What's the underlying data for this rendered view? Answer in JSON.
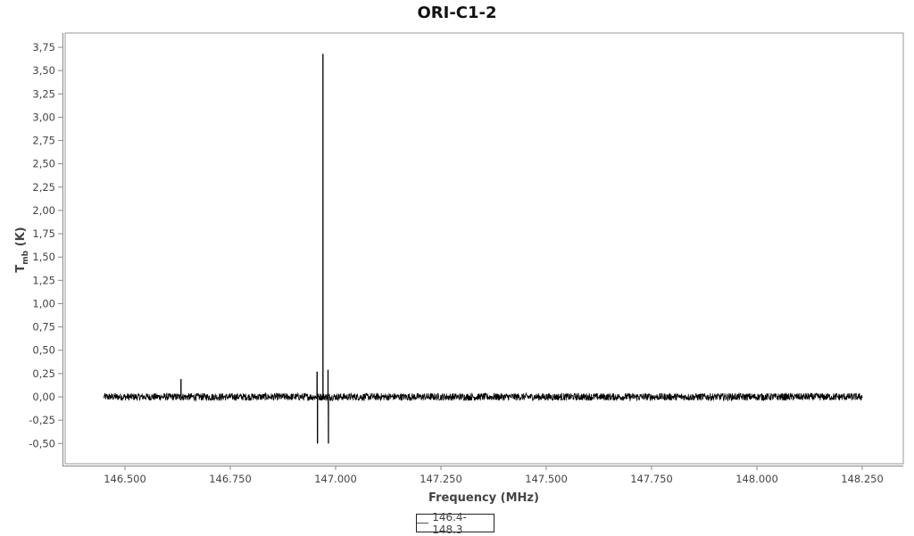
{
  "chart_data": {
    "type": "line",
    "title": "ORI-C1-2",
    "xlabel": "Frequency (MHz)",
    "ylabel": "T",
    "ylabel_sub": "mb",
    "ylabel_unit": "(K)",
    "xlim": [
      146.4,
      148.35
    ],
    "ylim": [
      -0.63,
      3.88
    ],
    "x_ticks": [
      "146.500",
      "146.750",
      "147.000",
      "147.250",
      "147.500",
      "147.750",
      "148.000",
      "148.250"
    ],
    "x_tick_values": [
      146.5,
      146.75,
      147.0,
      147.25,
      147.5,
      147.75,
      148.0,
      148.25
    ],
    "y_ticks": [
      "-0,50",
      "-0,25",
      "0,00",
      "0,25",
      "0,50",
      "0,75",
      "1,00",
      "1,25",
      "1,50",
      "1,75",
      "2,00",
      "2,25",
      "2,50",
      "2,75",
      "3,00",
      "3,25",
      "3,50",
      "3,75"
    ],
    "y_tick_values": [
      -0.5,
      -0.25,
      0,
      0.25,
      0.5,
      0.75,
      1,
      1.25,
      1.5,
      1.75,
      2,
      2.25,
      2.5,
      2.75,
      3,
      3.25,
      3.5,
      3.75
    ],
    "grid": false,
    "legend_position": "bottom",
    "series": [
      {
        "name": "146.4-148.3",
        "color": "#000000",
        "x_range": [
          146.45,
          148.25
        ],
        "baseline": 0.0,
        "noise_amplitude": 0.04,
        "features": [
          {
            "x": 146.633,
            "y": 0.19
          },
          {
            "x": 146.956,
            "y": 0.27
          },
          {
            "x": 146.957,
            "y": -0.5
          },
          {
            "x": 146.97,
            "y": 3.68
          },
          {
            "x": 146.982,
            "y": 0.29
          },
          {
            "x": 146.983,
            "y": -0.5
          }
        ]
      }
    ]
  }
}
